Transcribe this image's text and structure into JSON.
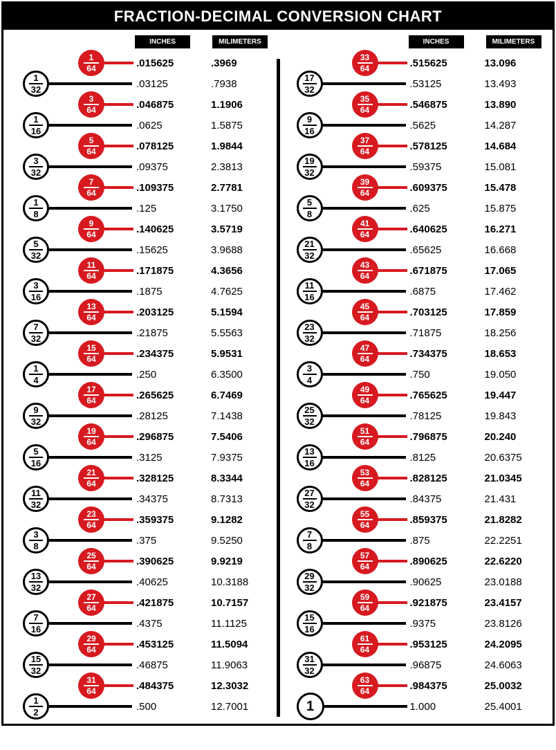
{
  "title": "FRACTION-DECIMAL CONVERSION CHART",
  "columns": {
    "inches": "INCHES",
    "mm": "MILIMETERS"
  },
  "colors": {
    "red": "#d71920",
    "black": "#000000",
    "white": "#ffffff"
  },
  "left": [
    {
      "type": "red",
      "num": "1",
      "den": "64",
      "inches": ".015625",
      "mm": ".3969"
    },
    {
      "type": "white",
      "num": "1",
      "den": "32",
      "inches": ".03125",
      "mm": ".7938"
    },
    {
      "type": "red",
      "num": "3",
      "den": "64",
      "inches": ".046875",
      "mm": "1.1906"
    },
    {
      "type": "white",
      "num": "1",
      "den": "16",
      "inches": ".0625",
      "mm": "1.5875"
    },
    {
      "type": "red",
      "num": "5",
      "den": "64",
      "inches": ".078125",
      "mm": "1.9844"
    },
    {
      "type": "white",
      "num": "3",
      "den": "32",
      "inches": ".09375",
      "mm": "2.3813"
    },
    {
      "type": "red",
      "num": "7",
      "den": "64",
      "inches": ".109375",
      "mm": "2.7781"
    },
    {
      "type": "white",
      "num": "1",
      "den": "8",
      "inches": ".125",
      "mm": "3.1750"
    },
    {
      "type": "red",
      "num": "9",
      "den": "64",
      "inches": ".140625",
      "mm": "3.5719"
    },
    {
      "type": "white",
      "num": "5",
      "den": "32",
      "inches": ".15625",
      "mm": "3.9688"
    },
    {
      "type": "red",
      "num": "11",
      "den": "64",
      "inches": ".171875",
      "mm": "4.3656"
    },
    {
      "type": "white",
      "num": "3",
      "den": "16",
      "inches": ".1875",
      "mm": "4.7625"
    },
    {
      "type": "red",
      "num": "13",
      "den": "64",
      "inches": ".203125",
      "mm": "5.1594"
    },
    {
      "type": "white",
      "num": "7",
      "den": "32",
      "inches": ".21875",
      "mm": "5.5563"
    },
    {
      "type": "red",
      "num": "15",
      "den": "64",
      "inches": ".234375",
      "mm": "5.9531"
    },
    {
      "type": "white",
      "num": "1",
      "den": "4",
      "inches": ".250",
      "mm": "6.3500"
    },
    {
      "type": "red",
      "num": "17",
      "den": "64",
      "inches": ".265625",
      "mm": "6.7469"
    },
    {
      "type": "white",
      "num": "9",
      "den": "32",
      "inches": ".28125",
      "mm": "7.1438"
    },
    {
      "type": "red",
      "num": "19",
      "den": "64",
      "inches": ".296875",
      "mm": "7.5406"
    },
    {
      "type": "white",
      "num": "5",
      "den": "16",
      "inches": ".3125",
      "mm": "7.9375"
    },
    {
      "type": "red",
      "num": "21",
      "den": "64",
      "inches": ".328125",
      "mm": "8.3344"
    },
    {
      "type": "white",
      "num": "11",
      "den": "32",
      "inches": ".34375",
      "mm": "8.7313"
    },
    {
      "type": "red",
      "num": "23",
      "den": "64",
      "inches": ".359375",
      "mm": "9.1282"
    },
    {
      "type": "white",
      "num": "3",
      "den": "8",
      "inches": ".375",
      "mm": "9.5250"
    },
    {
      "type": "red",
      "num": "25",
      "den": "64",
      "inches": ".390625",
      "mm": "9.9219"
    },
    {
      "type": "white",
      "num": "13",
      "den": "32",
      "inches": ".40625",
      "mm": "10.3188"
    },
    {
      "type": "red",
      "num": "27",
      "den": "64",
      "inches": ".421875",
      "mm": "10.7157"
    },
    {
      "type": "white",
      "num": "7",
      "den": "16",
      "inches": ".4375",
      "mm": "11.1125"
    },
    {
      "type": "red",
      "num": "29",
      "den": "64",
      "inches": ".453125",
      "mm": "11.5094"
    },
    {
      "type": "white",
      "num": "15",
      "den": "32",
      "inches": ".46875",
      "mm": "11.9063"
    },
    {
      "type": "red",
      "num": "31",
      "den": "64",
      "inches": ".484375",
      "mm": "12.3032"
    },
    {
      "type": "white",
      "num": "1",
      "den": "2",
      "inches": ".500",
      "mm": "12.7001"
    }
  ],
  "right": [
    {
      "type": "red",
      "num": "33",
      "den": "64",
      "inches": ".515625",
      "mm": "13.096"
    },
    {
      "type": "white",
      "num": "17",
      "den": "32",
      "inches": ".53125",
      "mm": "13.493"
    },
    {
      "type": "red",
      "num": "35",
      "den": "64",
      "inches": ".546875",
      "mm": "13.890"
    },
    {
      "type": "white",
      "num": "9",
      "den": "16",
      "inches": ".5625",
      "mm": "14.287"
    },
    {
      "type": "red",
      "num": "37",
      "den": "64",
      "inches": ".578125",
      "mm": "14.684"
    },
    {
      "type": "white",
      "num": "19",
      "den": "32",
      "inches": ".59375",
      "mm": "15.081"
    },
    {
      "type": "red",
      "num": "39",
      "den": "64",
      "inches": ".609375",
      "mm": "15.478"
    },
    {
      "type": "white",
      "num": "5",
      "den": "8",
      "inches": ".625",
      "mm": "15.875"
    },
    {
      "type": "red",
      "num": "41",
      "den": "64",
      "inches": ".640625",
      "mm": "16.271"
    },
    {
      "type": "white",
      "num": "21",
      "den": "32",
      "inches": ".65625",
      "mm": "16.668"
    },
    {
      "type": "red",
      "num": "43",
      "den": "64",
      "inches": ".671875",
      "mm": "17.065"
    },
    {
      "type": "white",
      "num": "11",
      "den": "16",
      "inches": ".6875",
      "mm": "17.462"
    },
    {
      "type": "red",
      "num": "45",
      "den": "64",
      "inches": ".703125",
      "mm": "17.859"
    },
    {
      "type": "white",
      "num": "23",
      "den": "32",
      "inches": ".71875",
      "mm": "18.256"
    },
    {
      "type": "red",
      "num": "47",
      "den": "64",
      "inches": ".734375",
      "mm": "18.653"
    },
    {
      "type": "white",
      "num": "3",
      "den": "4",
      "inches": ".750",
      "mm": "19.050"
    },
    {
      "type": "red",
      "num": "49",
      "den": "64",
      "inches": ".765625",
      "mm": "19.447"
    },
    {
      "type": "white",
      "num": "25",
      "den": "32",
      "inches": ".78125",
      "mm": "19.843"
    },
    {
      "type": "red",
      "num": "51",
      "den": "64",
      "inches": ".796875",
      "mm": "20.240"
    },
    {
      "type": "white",
      "num": "13",
      "den": "16",
      "inches": ".8125",
      "mm": "20.6375"
    },
    {
      "type": "red",
      "num": "53",
      "den": "64",
      "inches": ".828125",
      "mm": "21.0345"
    },
    {
      "type": "white",
      "num": "27",
      "den": "32",
      "inches": ".84375",
      "mm": "21.431"
    },
    {
      "type": "red",
      "num": "55",
      "den": "64",
      "inches": ".859375",
      "mm": "21.8282"
    },
    {
      "type": "white",
      "num": "7",
      "den": "8",
      "inches": ".875",
      "mm": "22.2251"
    },
    {
      "type": "red",
      "num": "57",
      "den": "64",
      "inches": ".890625",
      "mm": "22.6220"
    },
    {
      "type": "white",
      "num": "29",
      "den": "32",
      "inches": ".90625",
      "mm": "23.0188"
    },
    {
      "type": "red",
      "num": "59",
      "den": "64",
      "inches": ".921875",
      "mm": "23.4157"
    },
    {
      "type": "white",
      "num": "15",
      "den": "16",
      "inches": ".9375",
      "mm": "23.8126"
    },
    {
      "type": "red",
      "num": "61",
      "den": "64",
      "inches": ".953125",
      "mm": "24.2095"
    },
    {
      "type": "white",
      "num": "31",
      "den": "32",
      "inches": ".96875",
      "mm": "24.6063"
    },
    {
      "type": "red",
      "num": "63",
      "den": "64",
      "inches": ".984375",
      "mm": "25.0032"
    },
    {
      "type": "one",
      "num": "1",
      "den": "",
      "inches": "1.000",
      "mm": "25.4001"
    }
  ]
}
